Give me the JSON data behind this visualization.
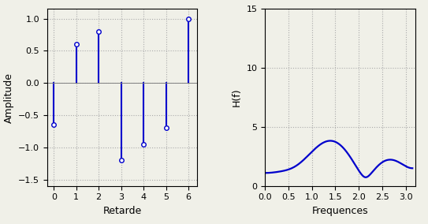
{
  "stem_x": [
    0,
    1,
    2,
    3,
    4,
    5,
    6
  ],
  "stem_y": [
    -0.65,
    0.6,
    0.8,
    -1.2,
    -0.95,
    -0.7,
    1.0
  ],
  "stem_color": "#0000cc",
  "stem_markerfacecolor": "white",
  "stem_markersize": 4,
  "stem_linewidth": 1.5,
  "left_xlabel": "Retarde",
  "left_ylabel": "Amplitude",
  "left_xlim": [
    -0.3,
    6.4
  ],
  "left_ylim": [
    -1.6,
    1.15
  ],
  "left_yticks": [
    -1.5,
    -1.0,
    -0.5,
    0,
    0.5,
    1.0
  ],
  "left_xticks": [
    0,
    1,
    2,
    3,
    4,
    5,
    6
  ],
  "right_xlabel": "Frequences",
  "right_ylabel": "H(f)",
  "right_xlim": [
    0,
    3.2
  ],
  "right_ylim": [
    0,
    15
  ],
  "right_yticks": [
    0,
    5,
    10,
    15
  ],
  "right_xticks": [
    0,
    0.5,
    1.0,
    1.5,
    2.0,
    2.5,
    3.0
  ],
  "line_color": "#0000cc",
  "line_width": 1.6,
  "h_impulse": [
    -0.65,
    0.6,
    0.8,
    -1.2,
    -0.95,
    -0.7,
    1.0
  ],
  "background_color": "#f0f0e8",
  "grid_color": "#aaaaaa",
  "fig_width": 5.43,
  "fig_height": 2.84
}
